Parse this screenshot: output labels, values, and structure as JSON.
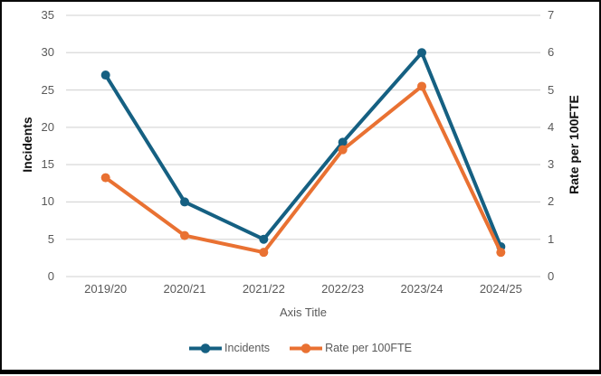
{
  "chart_data": {
    "type": "line",
    "title": "",
    "categories": [
      "2019/20",
      "2020/21",
      "2021/22",
      "2022/23",
      "2023/24",
      "2024/25"
    ],
    "series": [
      {
        "name": "Incidents",
        "axis": "left",
        "color": "#156082",
        "values": [
          27,
          10,
          5,
          18,
          30,
          4
        ]
      },
      {
        "name": "Rate per 100FTE",
        "axis": "right",
        "color": "#E97132",
        "values": [
          2.65,
          1.1,
          0.65,
          3.4,
          5.1,
          0.65
        ]
      }
    ],
    "xlabel": "Axis Title",
    "left_axis": {
      "title": "Incidents",
      "min": 0,
      "max": 35,
      "step": 5,
      "tick_labels": [
        "0",
        "5",
        "10",
        "15",
        "20",
        "25",
        "30",
        "35"
      ]
    },
    "right_axis": {
      "title": "Rate per 100FTE",
      "min": 0,
      "max": 7,
      "step": 1,
      "tick_labels": [
        "0",
        "1",
        "2",
        "3",
        "4",
        "5",
        "6",
        "7"
      ]
    },
    "grid": true,
    "legend": {
      "position": "bottom",
      "entries": [
        "Incidents",
        "Rate per 100FTE"
      ]
    },
    "colors": {
      "grid": "#D9D9D9",
      "tick_text": "#595959",
      "axis_title_text": "#111111",
      "incidents_line": "#156082",
      "rate_line": "#E97132",
      "background": "#FFFFFF",
      "frame_border": "#000000"
    }
  }
}
